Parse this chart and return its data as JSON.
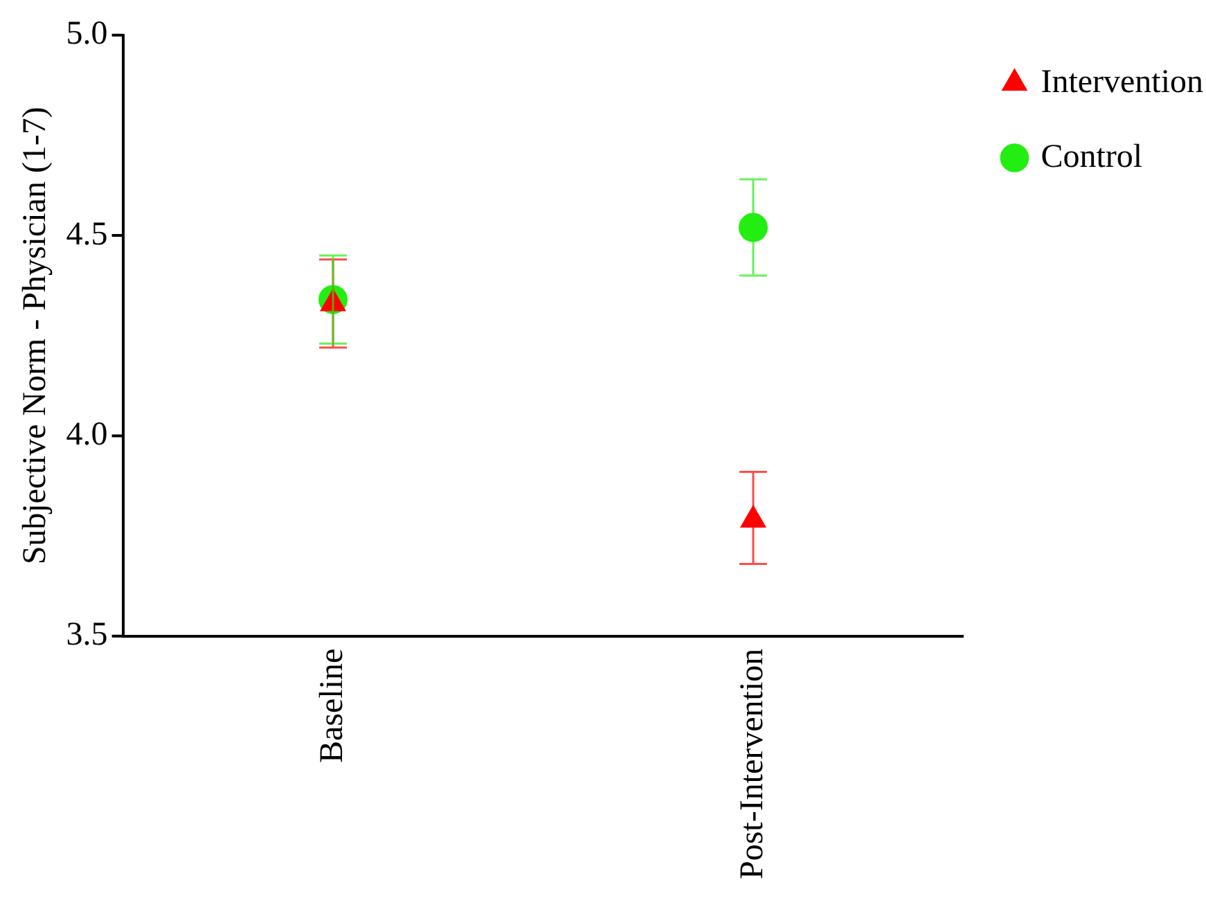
{
  "chart_data": {
    "type": "scatter",
    "ylabel": "Subjective Norm - Physician (1-7)",
    "categories": [
      "Baseline",
      "Post-Intervention"
    ],
    "ylim": [
      3.5,
      5.0
    ],
    "yticks": [
      {
        "value": 3.5,
        "label": "3.5"
      },
      {
        "value": 4.0,
        "label": "4.0"
      },
      {
        "value": 4.5,
        "label": "4.5"
      },
      {
        "value": 5.0,
        "label": "5.0"
      }
    ],
    "grid": false,
    "legend": "top right",
    "series": [
      {
        "name": "Intervention",
        "color": "#ff0000",
        "marker": "triangle",
        "values": [
          4.33,
          3.79
        ],
        "errors": [
          [
            4.22,
            4.44
          ],
          [
            3.68,
            3.91
          ]
        ]
      },
      {
        "name": "Control",
        "color": "#22ee11",
        "marker": "circle",
        "values": [
          4.34,
          4.52
        ],
        "errors": [
          [
            4.23,
            4.45
          ],
          [
            4.4,
            4.64
          ]
        ]
      }
    ]
  }
}
